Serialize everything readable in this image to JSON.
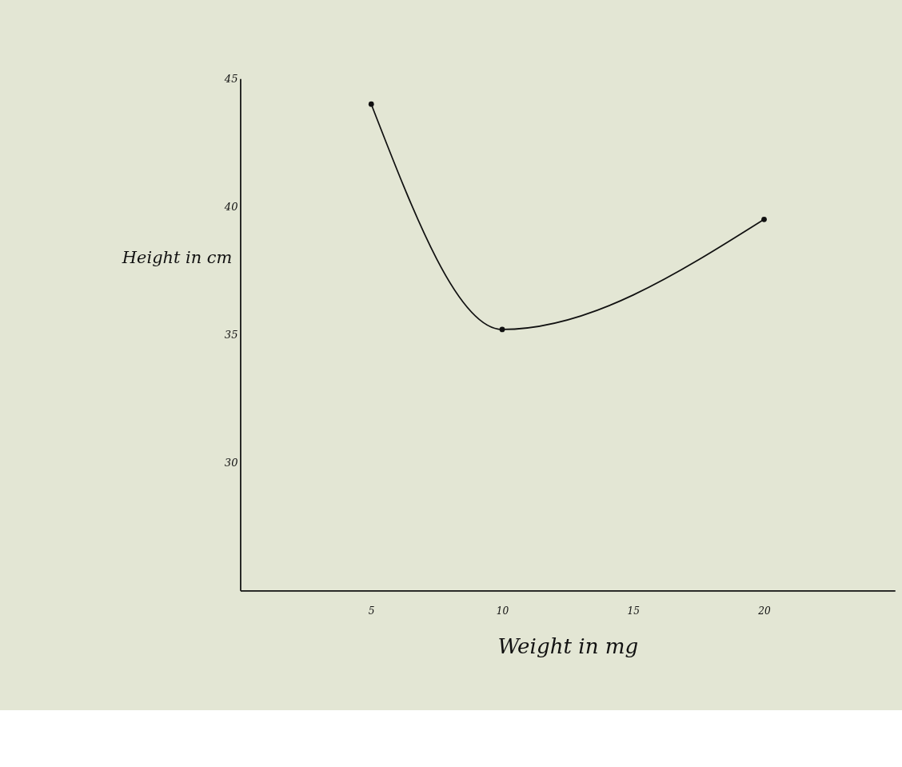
{
  "chart_data": {
    "type": "line",
    "xlabel": "Weight in mg",
    "ylabel": "Height in cm",
    "x": [
      5,
      10,
      20
    ],
    "series": [
      {
        "color": "#111111",
        "values": [
          44.0,
          35.2,
          39.5
        ]
      }
    ],
    "xlim": [
      0,
      25
    ],
    "xticks": [
      5,
      10,
      15,
      20
    ],
    "ylim": [
      25,
      45
    ],
    "yticks": [
      30,
      35,
      40,
      45
    ],
    "marker": "circle",
    "line_style": "solid",
    "grid": false,
    "legend": false
  }
}
